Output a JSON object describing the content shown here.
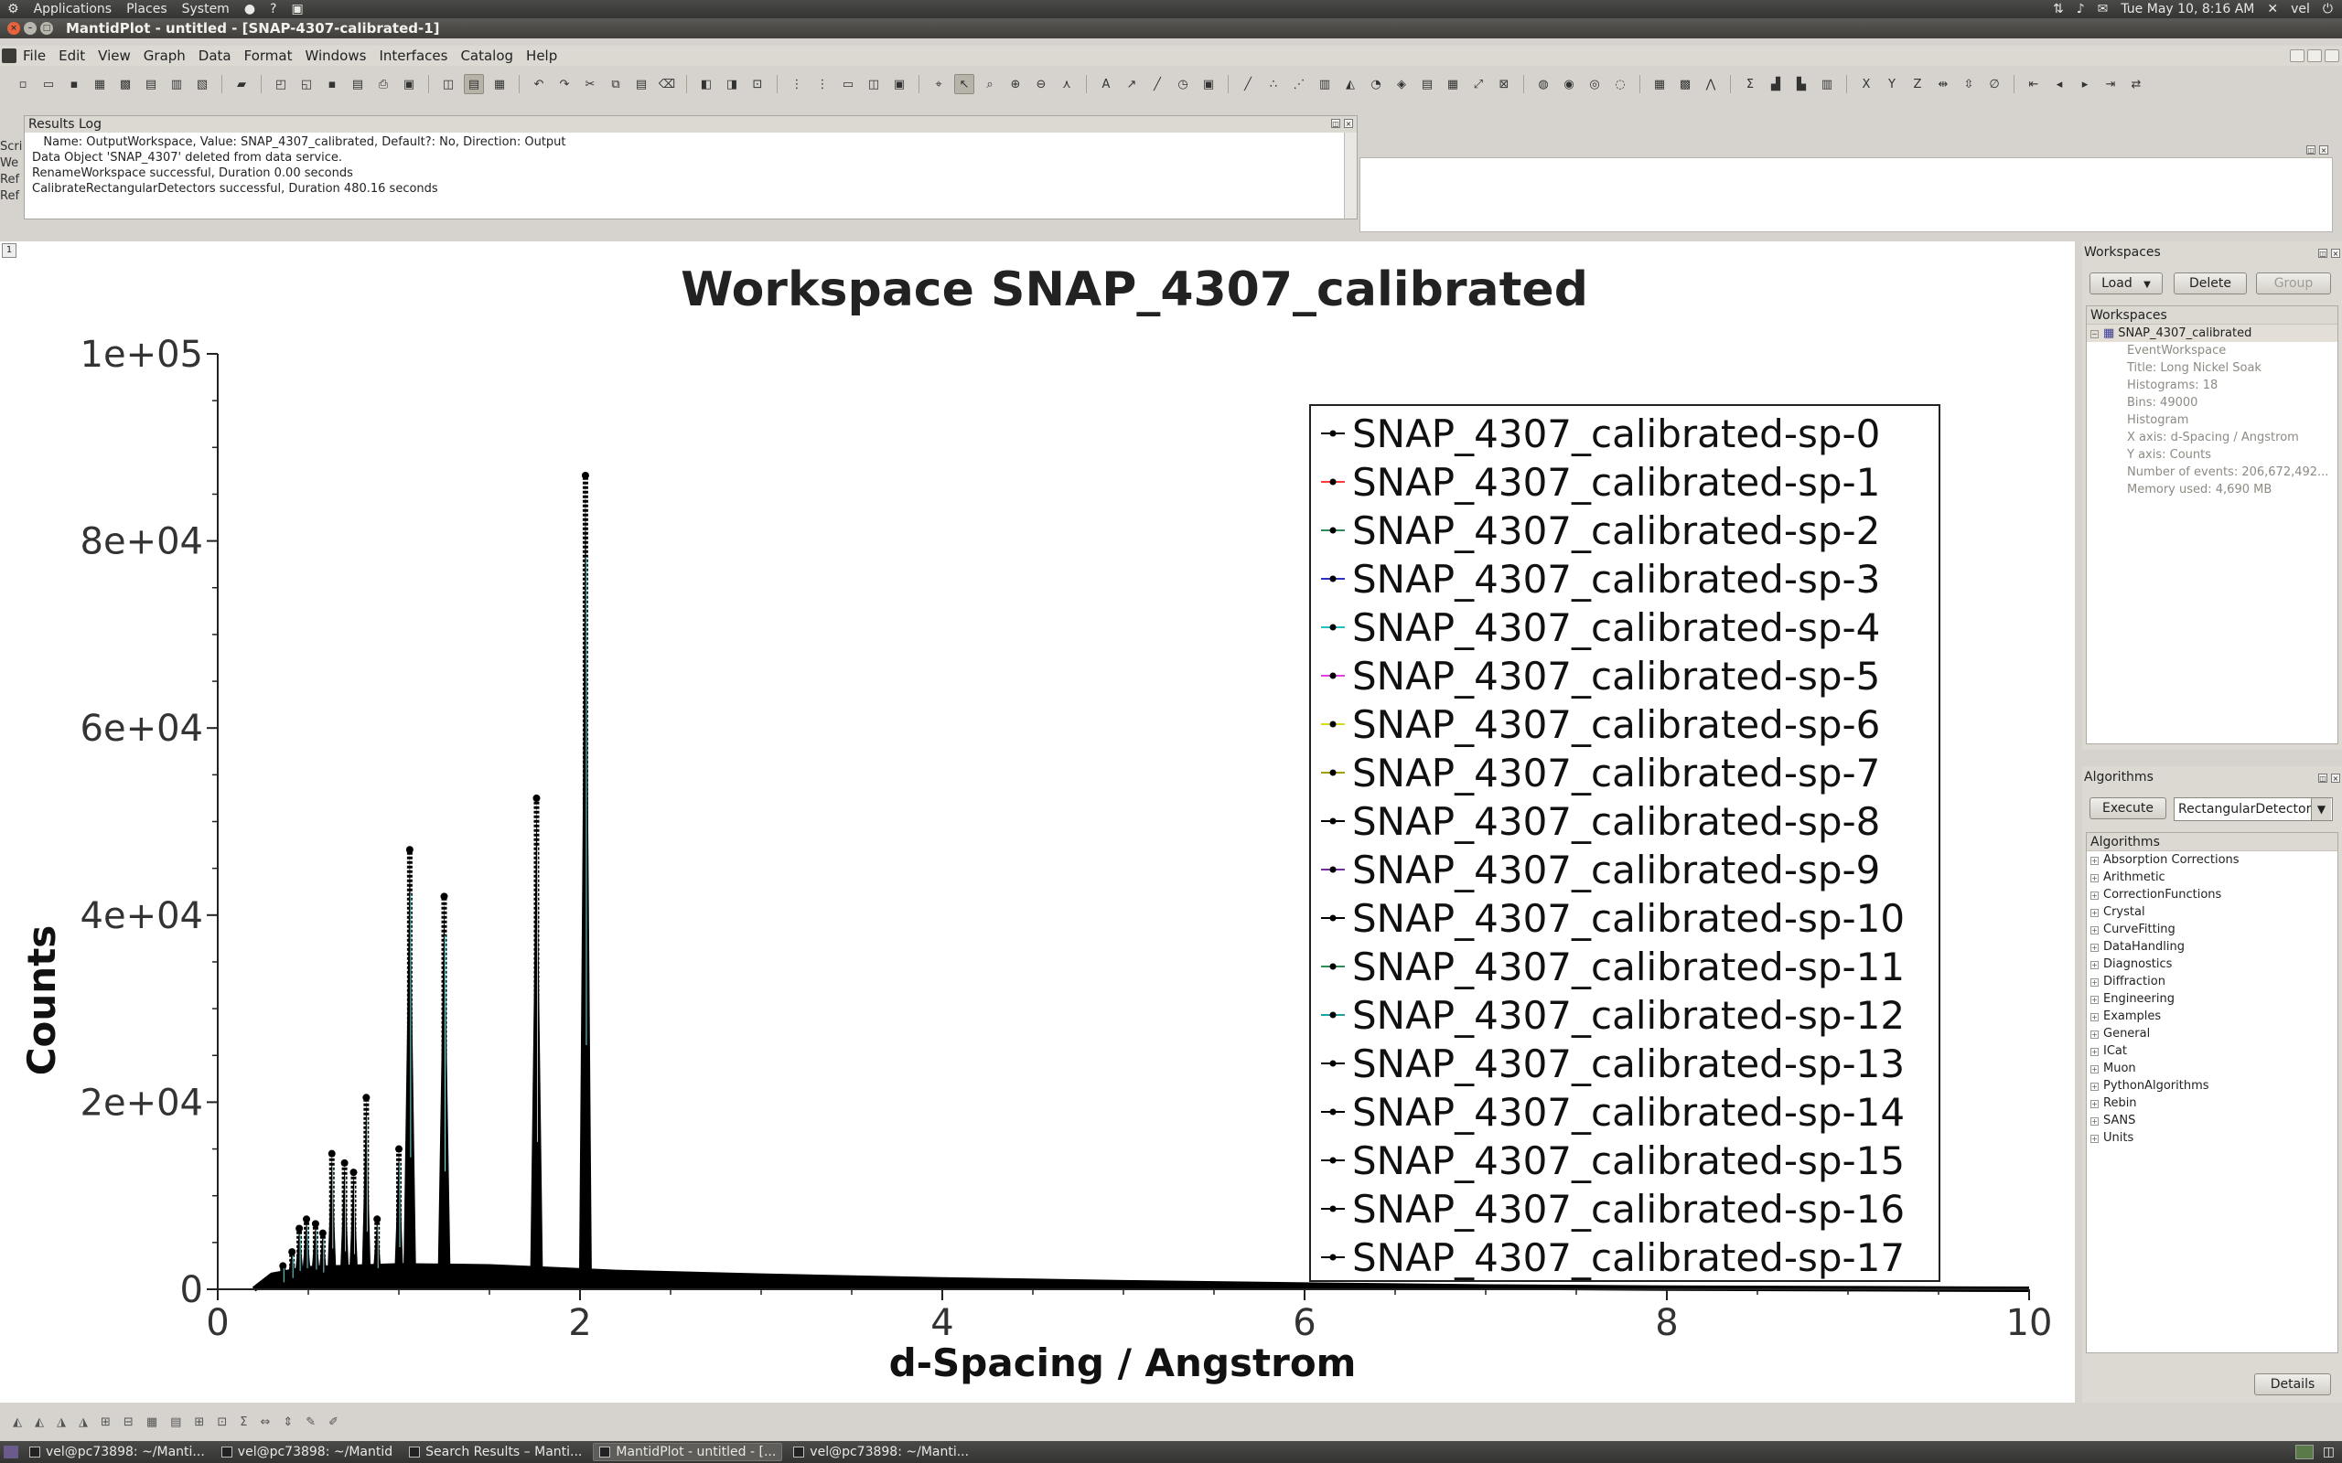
{
  "top_panel": {
    "menus": [
      "Applications",
      "Places",
      "System"
    ],
    "clock": "Tue May 10,  8:16 AM",
    "user": "vel"
  },
  "window": {
    "title": "MantidPlot - untitled - [SNAP-4307-calibrated-1]"
  },
  "menubar": [
    "File",
    "Edit",
    "View",
    "Graph",
    "Data",
    "Format",
    "Windows",
    "Interfaces",
    "Catalog",
    "Help"
  ],
  "script_strip": [
    "Scri",
    "We",
    "",
    "Ref",
    "Ref"
  ],
  "results_log": {
    "title": "Results Log",
    "lines": [
      "   Name: OutputWorkspace, Value: SNAP_4307_calibrated, Default?: No, Direction: Output",
      "Data Object 'SNAP_4307' deleted from data service.",
      "RenameWorkspace successful, Duration 0.00 seconds",
      "CalibrateRectangularDetectors successful, Duration 480.16 seconds"
    ]
  },
  "graph_tab": "1",
  "workspaces": {
    "dock_title": "Workspaces",
    "load": "Load",
    "delete": "Delete",
    "group": "Group",
    "tree_header": "Workspaces",
    "selected": "SNAP_4307_calibrated",
    "details": [
      "EventWorkspace",
      "Title: Long Nickel Soak",
      "Histograms: 18",
      "Bins: 49000",
      "Histogram",
      "X axis: d-Spacing / Angstrom",
      "Y axis: Counts",
      "Number of events: 206,672,492...",
      "Memory used: 4,690 MB"
    ]
  },
  "algorithms": {
    "dock_title": "Algorithms",
    "execute": "Execute",
    "search": "RectangularDetectors",
    "tree_header": "Algorithms",
    "categories": [
      "Absorption Corrections",
      "Arithmetic",
      "CorrectionFunctions",
      "Crystal",
      "CurveFitting",
      "DataHandling",
      "Diagnostics",
      "Diffraction",
      "Engineering",
      "Examples",
      "General",
      "ICat",
      "Muon",
      "PythonAlgorithms",
      "Rebin",
      "SANS",
      "Units"
    ],
    "details": "Details"
  },
  "taskbar": [
    {
      "label": "vel@pc73898: ~/Manti...",
      "active": false
    },
    {
      "label": "vel@pc73898: ~/Mantid",
      "active": false
    },
    {
      "label": "Search Results – Manti...",
      "active": false
    },
    {
      "label": "MantidPlot - untitled - [...",
      "active": true
    },
    {
      "label": "vel@pc73898: ~/Manti...",
      "active": false
    }
  ],
  "chart_data": {
    "type": "line",
    "title": "Workspace SNAP_4307_calibrated",
    "xlabel": "d-Spacing / Angstrom",
    "ylabel": "Counts",
    "xlim": [
      0,
      10
    ],
    "ylim": [
      0,
      100000
    ],
    "xticks": [
      "0",
      "2",
      "4",
      "6",
      "8",
      "10"
    ],
    "yticks": [
      "0",
      "2e+04",
      "4e+04",
      "6e+04",
      "8e+04",
      "1e+05"
    ],
    "legend": [
      "SNAP_4307_calibrated-sp-0",
      "SNAP_4307_calibrated-sp-1",
      "SNAP_4307_calibrated-sp-2",
      "SNAP_4307_calibrated-sp-3",
      "SNAP_4307_calibrated-sp-4",
      "SNAP_4307_calibrated-sp-5",
      "SNAP_4307_calibrated-sp-6",
      "SNAP_4307_calibrated-sp-7",
      "SNAP_4307_calibrated-sp-8",
      "SNAP_4307_calibrated-sp-9",
      "SNAP_4307_calibrated-sp-10",
      "SNAP_4307_calibrated-sp-11",
      "SNAP_4307_calibrated-sp-12",
      "SNAP_4307_calibrated-sp-13",
      "SNAP_4307_calibrated-sp-14",
      "SNAP_4307_calibrated-sp-15",
      "SNAP_4307_calibrated-sp-16",
      "SNAP_4307_calibrated-sp-17"
    ],
    "legend_marker_colors": [
      "#000000",
      "#ff3b3b",
      "#2e8b57",
      "#3030c0",
      "#20c0c0",
      "#e040e0",
      "#d8d820",
      "#a0a000",
      "#000000",
      "#7030a0",
      "#000000",
      "#2e8b57",
      "#20a0a0",
      "#000000",
      "#000000",
      "#000000",
      "#000000",
      "#000000"
    ],
    "legend_position": "top-right",
    "grid": false,
    "background_level": [
      [
        0.2,
        0
      ],
      [
        0.3,
        1500
      ],
      [
        0.5,
        2200
      ],
      [
        1.0,
        2500
      ],
      [
        1.5,
        2400
      ],
      [
        2.2,
        1800
      ],
      [
        3,
        1400
      ],
      [
        4,
        1000
      ],
      [
        5,
        700
      ],
      [
        6,
        450
      ],
      [
        7,
        250
      ],
      [
        8,
        120
      ],
      [
        9,
        60
      ],
      [
        10,
        0
      ]
    ],
    "peaks": [
      {
        "x": 0.36,
        "y": 2500
      },
      {
        "x": 0.41,
        "y": 4000
      },
      {
        "x": 0.45,
        "y": 6500
      },
      {
        "x": 0.49,
        "y": 7500
      },
      {
        "x": 0.54,
        "y": 7000
      },
      {
        "x": 0.58,
        "y": 6000
      },
      {
        "x": 0.63,
        "y": 14500
      },
      {
        "x": 0.7,
        "y": 13500
      },
      {
        "x": 0.75,
        "y": 12500
      },
      {
        "x": 0.82,
        "y": 20500
      },
      {
        "x": 0.88,
        "y": 7500
      },
      {
        "x": 1.0,
        "y": 15000
      },
      {
        "x": 1.06,
        "y": 47000
      },
      {
        "x": 1.25,
        "y": 42000
      },
      {
        "x": 1.76,
        "y": 52500
      },
      {
        "x": 2.03,
        "y": 87000
      }
    ]
  }
}
